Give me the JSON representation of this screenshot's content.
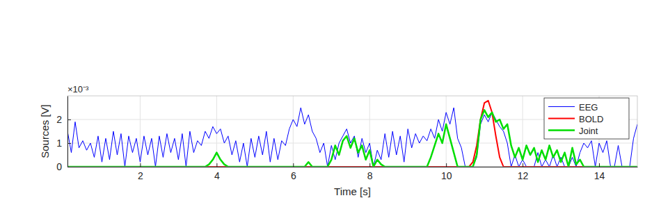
{
  "chart_data": {
    "type": "line",
    "x_label": "Time [s]",
    "y_label": "Sources [V]",
    "annotations": [
      "×10⁻³"
    ],
    "xlim": [
      0.1,
      15
    ],
    "ylim": [
      0,
      0.003
    ],
    "xticks": [
      2,
      4,
      6,
      8,
      10,
      12,
      14
    ],
    "yticks": [
      0,
      {
        "value": 0.001,
        "label": "1"
      },
      {
        "value": 0.002,
        "label": "2"
      }
    ],
    "grid": true,
    "legend": "northeast",
    "x": [
      0.1,
      0.2,
      0.3,
      0.4,
      0.5,
      0.6,
      0.7,
      0.8,
      0.9,
      1.0,
      1.1,
      1.2,
      1.3,
      1.4,
      1.5,
      1.6,
      1.7,
      1.8,
      1.9,
      2.0,
      2.1,
      2.2,
      2.3,
      2.4,
      2.5,
      2.6,
      2.7,
      2.8,
      2.9,
      3.0,
      3.1,
      3.2,
      3.3,
      3.4,
      3.5,
      3.6,
      3.7,
      3.8,
      3.9,
      4.0,
      4.1,
      4.2,
      4.3,
      4.4,
      4.5,
      4.6,
      4.7,
      4.8,
      4.9,
      5.0,
      5.1,
      5.2,
      5.3,
      5.4,
      5.5,
      5.6,
      5.7,
      5.8,
      5.9,
      6.0,
      6.1,
      6.2,
      6.3,
      6.4,
      6.5,
      6.6,
      6.7,
      6.8,
      6.9,
      7.0,
      7.1,
      7.2,
      7.3,
      7.4,
      7.5,
      7.6,
      7.7,
      7.8,
      7.9,
      8.0,
      8.1,
      8.2,
      8.3,
      8.4,
      8.5,
      8.6,
      8.7,
      8.8,
      8.9,
      9.0,
      9.1,
      9.2,
      9.3,
      9.4,
      9.5,
      9.6,
      9.7,
      9.8,
      9.9,
      10.0,
      10.1,
      10.2,
      10.3,
      10.4,
      10.5,
      10.6,
      10.7,
      10.8,
      10.9,
      11.0,
      11.1,
      11.2,
      11.3,
      11.4,
      11.5,
      11.6,
      11.7,
      11.8,
      11.9,
      12.0,
      12.1,
      12.2,
      12.3,
      12.4,
      12.5,
      12.6,
      12.7,
      12.8,
      12.9,
      13.0,
      13.1,
      13.2,
      13.3,
      13.4,
      13.5,
      13.6,
      13.7,
      13.8,
      13.9,
      14.0,
      14.1,
      14.2,
      14.3,
      14.4,
      14.5,
      14.6,
      14.7,
      14.8,
      14.9,
      15.0
    ],
    "series": [
      {
        "name": "EEG",
        "color": "#0000ff",
        "values": [
          0.0015,
          0.0006,
          0.0019,
          0.0008,
          0.0011,
          0.0007,
          0.001,
          0.0004,
          0.0013,
          0.0002,
          0.0012,
          0.0003,
          0.0015,
          0.0005,
          0.0014,
          0,
          0.0013,
          0.0006,
          0.0012,
          0.0002,
          0.0013,
          0.0005,
          0.0012,
          0,
          0.0013,
          0.0004,
          0.0014,
          0.0006,
          0.0012,
          0.0003,
          0.0014,
          0,
          0.0015,
          0.0006,
          0.0011,
          0.0009,
          0.0015,
          0.0012,
          0.0017,
          0.0014,
          0.0016,
          0.001,
          0.0013,
          0.0005,
          0.0011,
          0.0002,
          0.001,
          0,
          0.0012,
          0.0004,
          0.0013,
          0.0005,
          0.0015,
          0.0002,
          0.0012,
          0.0003,
          0.0011,
          0.0009,
          0.0016,
          0.002,
          0.0017,
          0.0025,
          0.0018,
          0.0022,
          0.0015,
          0.0012,
          0.0006,
          0.001,
          0,
          0.0009,
          0.0003,
          0.001,
          0.0013,
          0.0016,
          0.001,
          0.0013,
          0.0004,
          0.0012,
          0.0006,
          0.001,
          0,
          0.0007,
          0.0003,
          0.0014,
          0.0004,
          0.0015,
          0.0005,
          0.0013,
          0.0002,
          0.0016,
          0.0008,
          0.0014,
          0.001,
          0.0013,
          0.0011,
          0.0016,
          0.0012,
          0.002,
          0.0015,
          0.0023,
          0.0018,
          0.0025,
          0.0012,
          0.0008,
          0,
          0,
          0,
          0.0004,
          0.0018,
          0.0022,
          0.0019,
          0.0023,
          0.002,
          0.0017,
          0.0015,
          0.001,
          0,
          0.0005,
          0,
          0.0003,
          0,
          0,
          0,
          0.0006,
          0,
          0.0003,
          0,
          0.0005,
          0,
          0.0004,
          0,
          0,
          0.0004,
          0,
          0.0006,
          0.001,
          0.0008,
          0.0011,
          0,
          0.001,
          0.0006,
          0.0011,
          0,
          0,
          0.0009,
          0,
          0,
          0,
          0.0012,
          0.0018
        ]
      },
      {
        "name": "BOLD",
        "color": "#ff0000",
        "values": [
          0,
          0,
          0,
          0,
          0,
          0,
          0,
          0,
          0,
          0,
          0,
          0,
          0,
          0,
          0,
          0,
          0,
          0,
          0,
          0,
          0,
          0,
          0,
          0,
          0,
          0,
          0,
          0,
          0,
          0,
          0,
          0,
          0,
          0,
          0,
          0,
          0,
          0,
          0,
          0,
          0,
          0,
          0,
          0,
          0,
          0,
          0,
          0,
          0,
          0,
          0,
          0,
          0,
          0,
          0,
          0,
          0,
          0,
          0,
          0,
          0,
          0,
          0,
          0,
          0,
          0,
          0,
          0,
          0,
          0,
          0,
          0,
          0,
          0,
          0,
          0,
          0,
          0,
          0,
          0,
          0,
          0,
          0,
          0,
          0,
          0,
          0,
          0,
          0,
          0,
          0,
          0,
          0,
          0,
          0,
          0,
          0,
          0,
          0,
          0,
          0,
          0,
          0,
          0,
          0,
          0,
          0.0002,
          0.0009,
          0.002,
          0.0027,
          0.0028,
          0.0023,
          0.0013,
          0.0004,
          0,
          0,
          0,
          0,
          0,
          0,
          0,
          0,
          0,
          0,
          0,
          0,
          0,
          0,
          0,
          0,
          0,
          0,
          0,
          0,
          0,
          0,
          0,
          0,
          0,
          0,
          0,
          0,
          0,
          0,
          0,
          0,
          0,
          0,
          0,
          0
        ]
      },
      {
        "name": "Joint",
        "color": "#00dd00",
        "values": [
          0,
          0,
          0,
          0,
          0,
          0,
          0,
          0,
          0,
          0,
          0,
          0,
          0,
          0,
          0,
          0,
          0,
          0,
          0,
          0,
          0,
          0,
          0,
          0,
          0,
          0,
          0,
          0,
          0,
          0,
          0,
          0,
          0,
          0,
          0,
          0,
          0,
          0.0001,
          0.0003,
          0.0006,
          0.0003,
          0.0001,
          0,
          0,
          0,
          0,
          0,
          0,
          0,
          0,
          0,
          0,
          0,
          0,
          0,
          0,
          0,
          0,
          0,
          0,
          0,
          0,
          0,
          0.0002,
          0,
          0,
          0,
          0,
          0,
          0.0003,
          0.0009,
          0.0005,
          0.0011,
          0.0013,
          0.0008,
          0.0012,
          0.0006,
          0.0009,
          0.0003,
          0.0007,
          0,
          0.0003,
          0.0001,
          0,
          0,
          0,
          0,
          0,
          0,
          0,
          0,
          0,
          0,
          0,
          0,
          0.0004,
          0.0009,
          0.0014,
          0.001,
          0.0018,
          0.0012,
          0.0006,
          0,
          0,
          0,
          0,
          0,
          0.0005,
          0.002,
          0.0024,
          0.0021,
          0.0023,
          0.0019,
          0.002,
          0.0016,
          0.0018,
          0.0009,
          0.0004,
          0.0008,
          0.0003,
          0.0009,
          0.0005,
          0.0008,
          0.0002,
          0.0007,
          0.0003,
          0.0009,
          0.0004,
          0.0007,
          0.0002,
          0.0006,
          0,
          0.0008,
          0.0001,
          0.0003,
          0,
          0,
          0,
          0,
          0,
          0,
          0,
          0,
          0,
          0,
          0,
          0,
          0,
          0,
          0
        ]
      }
    ]
  }
}
